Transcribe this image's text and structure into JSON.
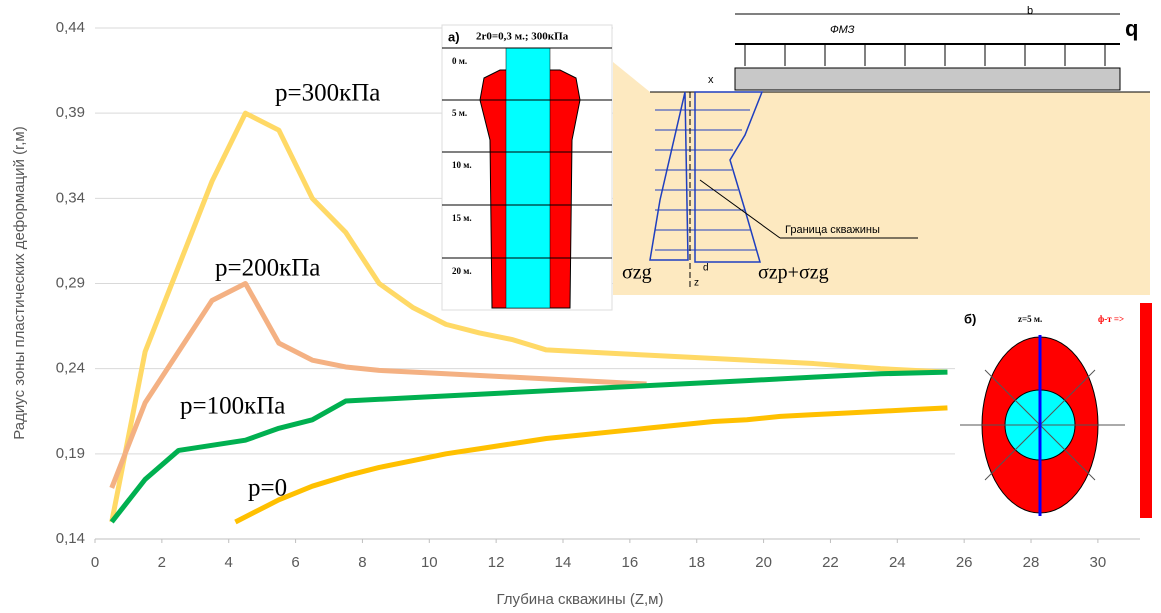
{
  "chart_data": {
    "type": "line",
    "xlabel": "Глубина скважины (Z,м)",
    "ylabel": "Радиус зоны пластических деформаций (r,м)",
    "xlim": [
      0,
      31.26
    ],
    "xticks": [
      0,
      2,
      4,
      6,
      8,
      10,
      12,
      14,
      16,
      18,
      20,
      22,
      24,
      26,
      28,
      30
    ],
    "ylim": [
      0.14,
      0.44
    ],
    "yticks": [
      {
        "value": 0.14,
        "label": "0,14"
      },
      {
        "value": 0.19,
        "label": "0,19"
      },
      {
        "value": 0.24,
        "label": "0,24"
      },
      {
        "value": 0.29,
        "label": "0,29"
      },
      {
        "value": 0.34,
        "label": "0,34"
      },
      {
        "value": 0.39,
        "label": "0,39"
      },
      {
        "value": 0.44,
        "label": "0,44"
      }
    ],
    "grid": true,
    "series": [
      {
        "name": "p=300кПа",
        "color": "#ffd966",
        "x": [
          0.5,
          1.5,
          2.5,
          3.5,
          4.5,
          5.5,
          6.5,
          7.5,
          8.5,
          9.5,
          10.5,
          11.5,
          12.5,
          13.5,
          15.5,
          17.5,
          19.5,
          21.5,
          23.5,
          25.5
        ],
        "values": [
          0.15,
          0.25,
          0.3,
          0.35,
          0.39,
          0.38,
          0.34,
          0.32,
          0.29,
          0.276,
          0.266,
          0.261,
          0.257,
          0.251,
          0.249,
          0.247,
          0.245,
          0.243,
          0.24,
          0.238
        ]
      },
      {
        "name": "p=200кПа",
        "color": "#f4b183",
        "x": [
          0.5,
          1.5,
          2.5,
          3.5,
          4.5,
          5.5,
          6.5,
          7.5,
          8.5,
          10.5,
          12.5,
          14.5,
          16.5
        ],
        "values": [
          0.17,
          0.22,
          0.25,
          0.28,
          0.29,
          0.255,
          0.245,
          0.241,
          0.239,
          0.237,
          0.235,
          0.233,
          0.231
        ]
      },
      {
        "name": "p=100кПа",
        "color": "#00b050",
        "x": [
          0.5,
          1.5,
          2.5,
          3.5,
          4.5,
          5.5,
          6.5,
          7.5,
          9.5,
          11.5,
          13.5,
          15.5,
          17.5,
          19.5,
          21.5,
          23.5,
          25.5
        ],
        "values": [
          0.15,
          0.175,
          0.192,
          0.195,
          0.198,
          0.205,
          0.21,
          0.221,
          0.223,
          0.225,
          0.227,
          0.229,
          0.231,
          0.233,
          0.235,
          0.237,
          0.238
        ]
      },
      {
        "name": "p=0",
        "color": "#ffc000",
        "x": [
          4.2,
          5.5,
          6.5,
          7.5,
          8.5,
          9.5,
          10.5,
          11.5,
          12.5,
          13.5,
          14.5,
          15.5,
          16.5,
          17.5,
          18.5,
          19.5,
          20.5,
          21.5,
          22.5,
          23.5,
          24.5,
          25.5
        ],
        "values": [
          0.15,
          0.163,
          0.171,
          0.177,
          0.182,
          0.186,
          0.19,
          0.193,
          0.196,
          0.199,
          0.201,
          0.203,
          0.205,
          0.207,
          0.209,
          0.21,
          0.212,
          0.213,
          0.214,
          0.215,
          0.216,
          0.217
        ]
      }
    ]
  },
  "inset_a": {
    "label": "а)",
    "header": "2r0=0,3 м.; 300кПа",
    "depths": [
      "0 м.",
      "5 м.",
      "10 м.",
      "15 м.",
      "20 м."
    ]
  },
  "scheme": {
    "b": "b",
    "fmz": "ФМЗ",
    "q": "q",
    "x": "x",
    "z": "z",
    "d": "d",
    "boundary": "Граница скважины",
    "sigma_zg": "σzg",
    "sigma_sum": "σzp+σzg"
  },
  "inset_b": {
    "label": "б)",
    "depth": "z=5 м.",
    "legend": "ф-т =>"
  }
}
